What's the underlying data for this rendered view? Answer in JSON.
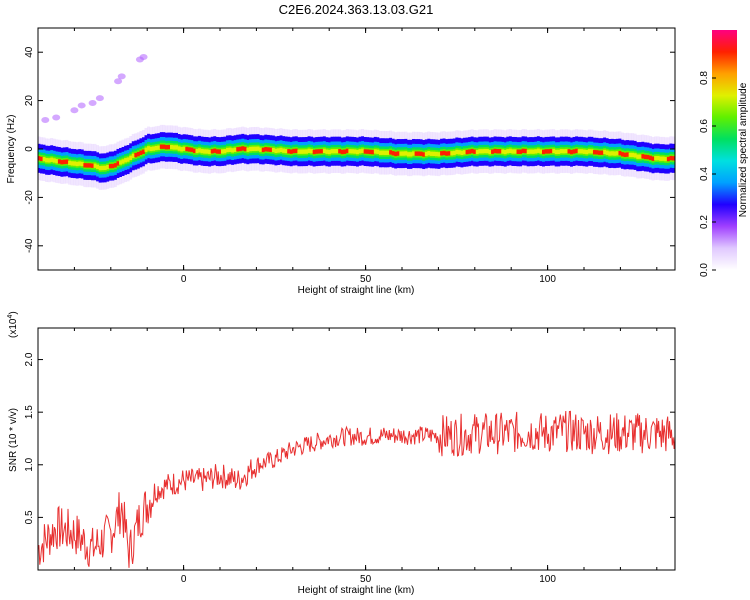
{
  "title": "C2E6.2024.363.13.03.G21",
  "chart_data": [
    {
      "type": "heatmap",
      "xlabel": "Height of straight line (km)",
      "ylabel": "Frequency (Hz)",
      "xlim": [
        -40,
        135
      ],
      "ylim": [
        -50,
        50
      ],
      "xticks": [
        0,
        50,
        100
      ],
      "yticks": [
        -40,
        -20,
        0,
        20,
        40
      ],
      "colorbar": {
        "label": "Normalized spectral amplitude",
        "range": [
          0,
          1
        ],
        "ticks": [
          0.0,
          0.2,
          0.4,
          0.6,
          0.8
        ],
        "colors": [
          "#ffffff",
          "#e0c8ff",
          "#a040ff",
          "#2000ff",
          "#00a0ff",
          "#00e0e0",
          "#00e060",
          "#60f000",
          "#e0f000",
          "#ffa000",
          "#ff2000",
          "#ff0080"
        ]
      },
      "ridge": {
        "x": [
          -40,
          -35,
          -30,
          -25,
          -22,
          -18,
          -14,
          -10,
          -5,
          0,
          5,
          10,
          15,
          20,
          30,
          40,
          50,
          60,
          70,
          80,
          90,
          100,
          110,
          120,
          125,
          130,
          135
        ],
        "y": [
          -4,
          -5,
          -6,
          -7,
          -8,
          -6,
          -3,
          0,
          1,
          0,
          -1,
          -1,
          0,
          0,
          -1,
          -1,
          -1,
          -2,
          -2,
          -1,
          -1,
          -1,
          -1,
          -2,
          -3,
          -4,
          -4
        ]
      },
      "outliers": [
        {
          "x": -38,
          "y": 12
        },
        {
          "x": -35,
          "y": 13
        },
        {
          "x": -30,
          "y": 16
        },
        {
          "x": -28,
          "y": 18
        },
        {
          "x": -25,
          "y": 19
        },
        {
          "x": -23,
          "y": 21
        },
        {
          "x": -18,
          "y": 28
        },
        {
          "x": -17,
          "y": 30
        },
        {
          "x": -12,
          "y": 37
        },
        {
          "x": -11,
          "y": 38
        }
      ]
    },
    {
      "type": "line",
      "xlabel": "Height of straight line (km)",
      "ylabel": "SNR (10 * v/v)",
      "y_multiplier": "(x10",
      "y_multiplier_exp": "4",
      "xlim": [
        -40,
        135
      ],
      "ylim": [
        0.0,
        2.3
      ],
      "xticks": [
        0,
        50,
        100
      ],
      "yticks": [
        0.5,
        1.0,
        1.5,
        2.0
      ],
      "color": "#e83030",
      "series": [
        {
          "x": [
            -40,
            -35,
            -30,
            -25,
            -20,
            -17,
            -15,
            -12,
            -8,
            -5,
            0,
            5,
            10,
            15,
            20,
            25,
            30,
            35,
            40,
            45,
            50,
            55,
            60,
            65,
            70,
            75,
            80,
            85,
            90,
            95,
            100,
            105,
            110,
            115,
            120,
            125,
            130,
            135
          ],
          "y": [
            0.2,
            0.4,
            0.35,
            0.2,
            0.35,
            0.6,
            0.15,
            0.5,
            0.75,
            0.8,
            0.85,
            0.85,
            0.9,
            0.85,
            1.0,
            1.05,
            1.15,
            1.2,
            1.25,
            1.27,
            1.27,
            1.28,
            1.28,
            1.28,
            1.28,
            1.28,
            1.3,
            1.3,
            1.3,
            1.32,
            1.3,
            1.32,
            1.3,
            1.3,
            1.3,
            1.3,
            1.3,
            1.28
          ]
        }
      ]
    }
  ]
}
